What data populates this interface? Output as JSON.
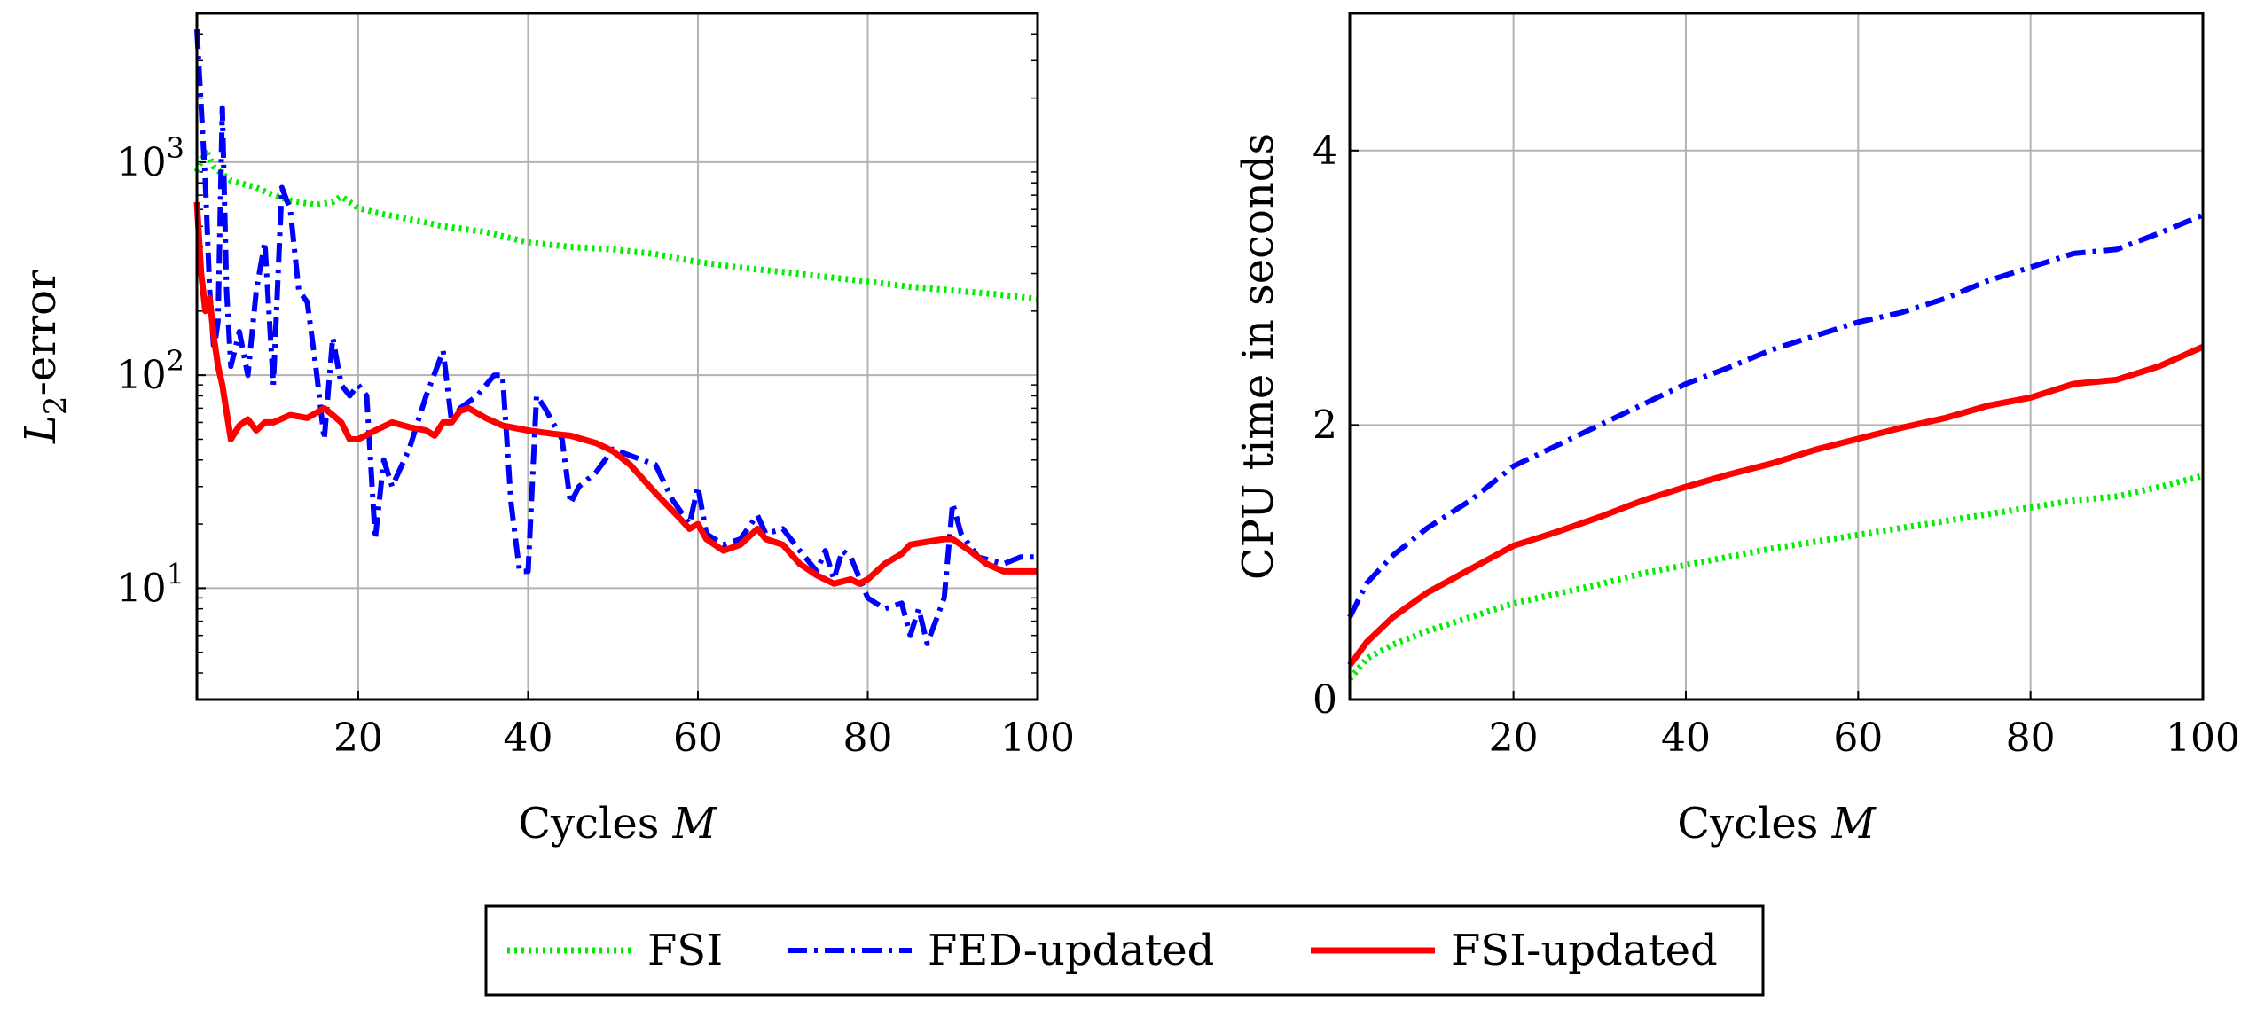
{
  "chart_data": [
    {
      "type": "line",
      "yscale": "log",
      "xlabel_text": "Cycles ",
      "xlabel_var": "M",
      "ylabel_var": "L",
      "ylabel_sub": "2",
      "ylabel_suffix": "-error",
      "xlim": [
        1,
        100
      ],
      "ylim": [
        3,
        5000
      ],
      "xticks": [
        20,
        40,
        60,
        80,
        100
      ],
      "yticks": [
        {
          "base": "10",
          "exp": "1",
          "value": 10
        },
        {
          "base": "10",
          "exp": "2",
          "value": 100
        },
        {
          "base": "10",
          "exp": "3",
          "value": 1000
        }
      ],
      "grid": true,
      "series": [
        {
          "name": "FSI",
          "color": "#00ee00",
          "style": "dotted",
          "points": [
            [
              1,
              900
            ],
            [
              2,
              1150
            ],
            [
              3,
              950
            ],
            [
              4,
              880
            ],
            [
              5,
              820
            ],
            [
              8,
              760
            ],
            [
              10,
              700
            ],
            [
              12,
              660
            ],
            [
              15,
              630
            ],
            [
              17,
              650
            ],
            [
              18,
              690
            ],
            [
              20,
              610
            ],
            [
              22,
              580
            ],
            [
              25,
              550
            ],
            [
              28,
              520
            ],
            [
              30,
              500
            ],
            [
              35,
              470
            ],
            [
              40,
              420
            ],
            [
              45,
              400
            ],
            [
              50,
              390
            ],
            [
              55,
              370
            ],
            [
              60,
              340
            ],
            [
              65,
              320
            ],
            [
              70,
              305
            ],
            [
              75,
              290
            ],
            [
              80,
              275
            ],
            [
              85,
              260
            ],
            [
              90,
              250
            ],
            [
              95,
              240
            ],
            [
              100,
              228
            ]
          ]
        },
        {
          "name": "FED-updated",
          "color": "#0000ff",
          "style": "dashdot",
          "points": [
            [
              1,
              4200
            ],
            [
              2,
              800
            ],
            [
              2.5,
              250
            ],
            [
              3,
              130
            ],
            [
              3.5,
              180
            ],
            [
              4,
              1800
            ],
            [
              4.5,
              250
            ],
            [
              5,
              110
            ],
            [
              6,
              160
            ],
            [
              7,
              100
            ],
            [
              8,
              250
            ],
            [
              9,
              420
            ],
            [
              10,
              90
            ],
            [
              11,
              760
            ],
            [
              12,
              600
            ],
            [
              13,
              250
            ],
            [
              14,
              220
            ],
            [
              15,
              110
            ],
            [
              16,
              50
            ],
            [
              17,
              150
            ],
            [
              18,
              90
            ],
            [
              19,
              80
            ],
            [
              20,
              90
            ],
            [
              21,
              80
            ],
            [
              22,
              17
            ],
            [
              23,
              40
            ],
            [
              24,
              30
            ],
            [
              26,
              45
            ],
            [
              28,
              80
            ],
            [
              30,
              130
            ],
            [
              31,
              60
            ],
            [
              32,
              70
            ],
            [
              34,
              80
            ],
            [
              36,
              100
            ],
            [
              37,
              100
            ],
            [
              38,
              25
            ],
            [
              39,
              12
            ],
            [
              40,
              12
            ],
            [
              41,
              80
            ],
            [
              42,
              70
            ],
            [
              44,
              50
            ],
            [
              45,
              25
            ],
            [
              46,
              30
            ],
            [
              48,
              35
            ],
            [
              50,
              45
            ],
            [
              52,
              42
            ],
            [
              55,
              38
            ],
            [
              57,
              26
            ],
            [
              59,
              20
            ],
            [
              60,
              30
            ],
            [
              61,
              18
            ],
            [
              63,
              16
            ],
            [
              65,
              17
            ],
            [
              67,
              22
            ],
            [
              68,
              18
            ],
            [
              70,
              19
            ],
            [
              72,
              15
            ],
            [
              74,
              12
            ],
            [
              75,
              15
            ],
            [
              76,
              11
            ],
            [
              77,
              15
            ],
            [
              78,
              14
            ],
            [
              80,
              9
            ],
            [
              82,
              8
            ],
            [
              84,
              8.5
            ],
            [
              85,
              6
            ],
            [
              86,
              8
            ],
            [
              87,
              5.5
            ],
            [
              88,
              7
            ],
            [
              89,
              9
            ],
            [
              90,
              25
            ],
            [
              91,
              18
            ],
            [
              93,
              14
            ],
            [
              96,
              13
            ],
            [
              98,
              14
            ],
            [
              100,
              14
            ]
          ]
        },
        {
          "name": "FSI-updated",
          "color": "#ff0000",
          "style": "solid",
          "points": [
            [
              1,
              650
            ],
            [
              1.5,
              300
            ],
            [
              2,
              200
            ],
            [
              2.5,
              230
            ],
            [
              3,
              150
            ],
            [
              3.5,
              110
            ],
            [
              4,
              90
            ],
            [
              5,
              50
            ],
            [
              6,
              58
            ],
            [
              7,
              62
            ],
            [
              8,
              55
            ],
            [
              9,
              60
            ],
            [
              10,
              60
            ],
            [
              12,
              65
            ],
            [
              14,
              63
            ],
            [
              16,
              70
            ],
            [
              17,
              65
            ],
            [
              18,
              60
            ],
            [
              19,
              50
            ],
            [
              20,
              50
            ],
            [
              22,
              55
            ],
            [
              24,
              60
            ],
            [
              26,
              57
            ],
            [
              28,
              55
            ],
            [
              29,
              52
            ],
            [
              30,
              60
            ],
            [
              31,
              60
            ],
            [
              32,
              68
            ],
            [
              33,
              70
            ],
            [
              35,
              63
            ],
            [
              37,
              58
            ],
            [
              40,
              55
            ],
            [
              43,
              53
            ],
            [
              45,
              52
            ],
            [
              48,
              48
            ],
            [
              50,
              44
            ],
            [
              52,
              38
            ],
            [
              55,
              28
            ],
            [
              58,
              21
            ],
            [
              59,
              19
            ],
            [
              60,
              20
            ],
            [
              61,
              17
            ],
            [
              63,
              15
            ],
            [
              65,
              16
            ],
            [
              67,
              19
            ],
            [
              68,
              17
            ],
            [
              70,
              16
            ],
            [
              72,
              13
            ],
            [
              74,
              11.5
            ],
            [
              76,
              10.5
            ],
            [
              78,
              11
            ],
            [
              79,
              10.5
            ],
            [
              80,
              11
            ],
            [
              82,
              13
            ],
            [
              84,
              14.5
            ],
            [
              85,
              16
            ],
            [
              87,
              16.5
            ],
            [
              89,
              17
            ],
            [
              90,
              17
            ],
            [
              92,
              15
            ],
            [
              94,
              13
            ],
            [
              96,
              12
            ],
            [
              98,
              12
            ],
            [
              100,
              12
            ]
          ]
        }
      ]
    },
    {
      "type": "line",
      "yscale": "linear",
      "xlabel_text": "Cycles ",
      "xlabel_var": "M",
      "ylabel": "CPU time in seconds",
      "xlim": [
        1,
        100
      ],
      "ylim": [
        0,
        5
      ],
      "xticks": [
        20,
        40,
        60,
        80,
        100
      ],
      "yticks": [
        0,
        2,
        4
      ],
      "grid": true,
      "series": [
        {
          "name": "FSI",
          "color": "#00ee00",
          "style": "dotted",
          "points": [
            [
              1,
              0.15
            ],
            [
              3,
              0.3
            ],
            [
              6,
              0.4
            ],
            [
              10,
              0.5
            ],
            [
              15,
              0.6
            ],
            [
              20,
              0.7
            ],
            [
              25,
              0.77
            ],
            [
              30,
              0.84
            ],
            [
              35,
              0.92
            ],
            [
              40,
              0.98
            ],
            [
              45,
              1.04
            ],
            [
              50,
              1.1
            ],
            [
              55,
              1.15
            ],
            [
              60,
              1.2
            ],
            [
              65,
              1.25
            ],
            [
              70,
              1.3
            ],
            [
              75,
              1.35
            ],
            [
              80,
              1.4
            ],
            [
              85,
              1.45
            ],
            [
              90,
              1.48
            ],
            [
              95,
              1.55
            ],
            [
              100,
              1.63
            ]
          ]
        },
        {
          "name": "FED-updated",
          "color": "#0000ff",
          "style": "dashdot",
          "points": [
            [
              1,
              0.6
            ],
            [
              3,
              0.85
            ],
            [
              6,
              1.05
            ],
            [
              10,
              1.25
            ],
            [
              15,
              1.45
            ],
            [
              20,
              1.7
            ],
            [
              25,
              1.85
            ],
            [
              30,
              2.0
            ],
            [
              35,
              2.15
            ],
            [
              40,
              2.3
            ],
            [
              45,
              2.42
            ],
            [
              50,
              2.55
            ],
            [
              55,
              2.65
            ],
            [
              60,
              2.75
            ],
            [
              65,
              2.82
            ],
            [
              70,
              2.92
            ],
            [
              75,
              3.05
            ],
            [
              80,
              3.15
            ],
            [
              85,
              3.25
            ],
            [
              90,
              3.28
            ],
            [
              95,
              3.4
            ],
            [
              100,
              3.53
            ]
          ]
        },
        {
          "name": "FSI-updated",
          "color": "#ff0000",
          "style": "solid",
          "points": [
            [
              1,
              0.25
            ],
            [
              3,
              0.42
            ],
            [
              6,
              0.6
            ],
            [
              10,
              0.78
            ],
            [
              15,
              0.95
            ],
            [
              20,
              1.12
            ],
            [
              25,
              1.22
            ],
            [
              30,
              1.33
            ],
            [
              35,
              1.45
            ],
            [
              40,
              1.55
            ],
            [
              45,
              1.64
            ],
            [
              50,
              1.72
            ],
            [
              55,
              1.82
            ],
            [
              60,
              1.9
            ],
            [
              65,
              1.98
            ],
            [
              70,
              2.05
            ],
            [
              75,
              2.14
            ],
            [
              80,
              2.2
            ],
            [
              85,
              2.3
            ],
            [
              90,
              2.33
            ],
            [
              95,
              2.43
            ],
            [
              100,
              2.57
            ]
          ]
        }
      ]
    }
  ],
  "legend": {
    "placement": "bottom-center",
    "entries": [
      {
        "label": "FSI",
        "color": "#00ee00",
        "style": "dotted"
      },
      {
        "label": "FED-updated",
        "color": "#0000ff",
        "style": "dashdot"
      },
      {
        "label": "FSI-updated",
        "color": "#ff0000",
        "style": "solid"
      }
    ]
  }
}
